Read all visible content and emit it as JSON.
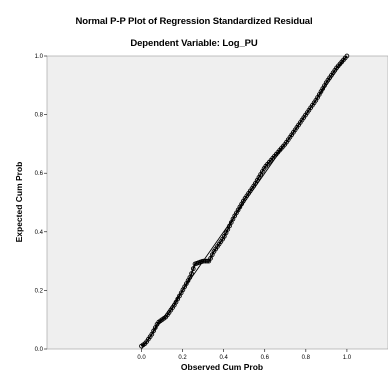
{
  "chart_data": {
    "type": "scatter",
    "title": "Normal P-P Plot of Regression Standardized Residual",
    "subtitle": "Dependent Variable: Log_PU",
    "xlabel": "Observed Cum Prob",
    "ylabel": "Expected Cum Prob",
    "xlim": [
      -0.46,
      1.2
    ],
    "ylim": [
      0,
      1.0
    ],
    "x_ticks": [
      "0.0",
      "0.2",
      "0.4",
      "0.6",
      "0.8",
      "1.0"
    ],
    "y_ticks": [
      "0.0",
      "0.2",
      "0.4",
      "0.6",
      "0.8",
      "1.0"
    ],
    "reference_line": {
      "from": [
        0,
        0
      ],
      "to": [
        1,
        1
      ]
    },
    "curve_knots": [
      [
        0.0,
        0.01
      ],
      [
        0.02,
        0.02
      ],
      [
        0.05,
        0.05
      ],
      [
        0.08,
        0.09
      ],
      [
        0.12,
        0.11
      ],
      [
        0.16,
        0.15
      ],
      [
        0.2,
        0.2
      ],
      [
        0.24,
        0.25
      ],
      [
        0.26,
        0.29
      ],
      [
        0.3,
        0.3
      ],
      [
        0.33,
        0.3
      ],
      [
        0.35,
        0.33
      ],
      [
        0.4,
        0.38
      ],
      [
        0.45,
        0.45
      ],
      [
        0.5,
        0.51
      ],
      [
        0.55,
        0.56
      ],
      [
        0.6,
        0.62
      ],
      [
        0.65,
        0.66
      ],
      [
        0.7,
        0.7
      ],
      [
        0.75,
        0.75
      ],
      [
        0.8,
        0.8
      ],
      [
        0.85,
        0.85
      ],
      [
        0.9,
        0.91
      ],
      [
        0.95,
        0.96
      ],
      [
        1.0,
        1.0
      ]
    ],
    "point_count": 120,
    "grid": false,
    "legend": "none",
    "colors": {
      "plot_bg": "#efefef",
      "points": "#000000",
      "line": "#000000"
    }
  }
}
